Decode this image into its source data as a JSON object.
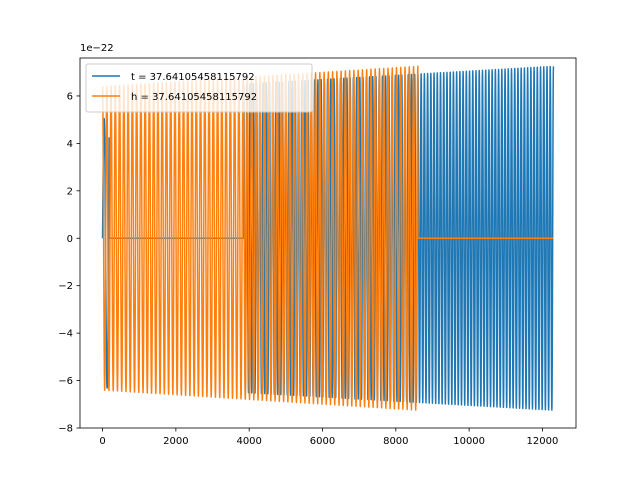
{
  "chart_data": {
    "type": "line",
    "title": "",
    "xlabel": "",
    "ylabel": "",
    "y_offset_label": "1e−22",
    "xlim": [
      -615,
      12915
    ],
    "ylim": [
      -8,
      7.6
    ],
    "x_ticks": [
      0,
      2000,
      4000,
      6000,
      8000,
      10000,
      12000
    ],
    "y_ticks": [
      -8,
      -6,
      -4,
      -2,
      0,
      2,
      4,
      6
    ],
    "tick_format": "minus",
    "grid": false,
    "legend_position": "upper-left",
    "series": [
      {
        "name": "t = 37.64105458115792",
        "color": "#1f77b4",
        "segments": [
          {
            "kind": "wave",
            "x_start": 0,
            "x_end": 180,
            "cycles": 1.1,
            "amp_start": 4.4,
            "amp_end": 7.2,
            "phase": 0
          },
          {
            "kind": "flat",
            "x_start": 180,
            "x_end": 3850,
            "value": 0
          },
          {
            "kind": "wave",
            "x_start": 3850,
            "x_end": 12300,
            "cycles": 96,
            "amp_start": 6.5,
            "amp_end": 7.25,
            "phase": 1.57
          }
        ]
      },
      {
        "name": "h = 37.64105458115792",
        "color": "#ff7f0e",
        "segments": [
          {
            "kind": "wave",
            "x_start": 0,
            "x_end": 8600,
            "cycles": 74,
            "amp_start": 6.4,
            "amp_end": 7.25,
            "phase": 1.57
          },
          {
            "kind": "flat",
            "x_start": 8600,
            "x_end": 12300,
            "value": 0
          }
        ]
      }
    ]
  }
}
